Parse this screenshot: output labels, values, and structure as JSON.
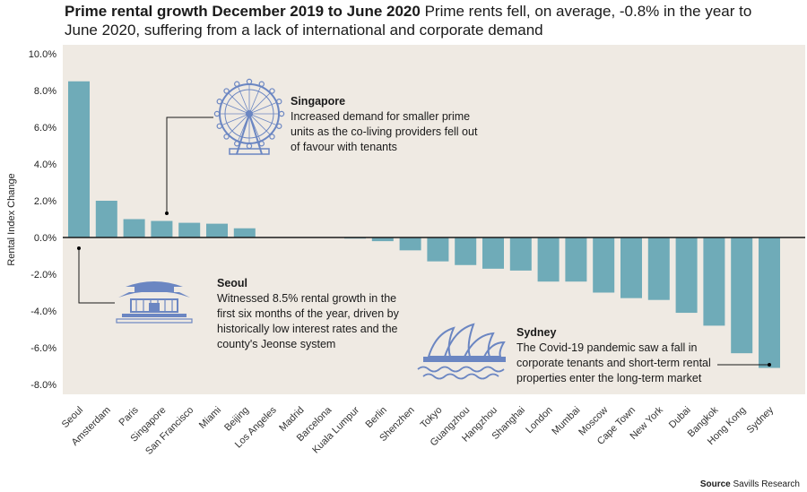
{
  "header": {
    "title_bold": "Prime rental growth December 2019 to June 2020",
    "title_rest": "Prime rents fell, on average, -0.8% in the year to June 2020, suffering from a lack of international and corporate demand"
  },
  "chart_data": {
    "type": "bar",
    "ylabel": "Rental Index Change",
    "ylim": [
      -8.5,
      10.0
    ],
    "yticks": [
      "10.0%",
      "8.0%",
      "6.0%",
      "4.0%",
      "2.0%",
      "0.0%",
      "-2.0%",
      "-4.0%",
      "-6.0%",
      "-8.0%"
    ],
    "ytick_values": [
      10,
      8,
      6,
      4,
      2,
      0,
      -2,
      -4,
      -6,
      -8
    ],
    "categories": [
      "Seoul",
      "Amsterdam",
      "Paris",
      "Singapore",
      "San Francisco",
      "Miami",
      "Beijing",
      "Los Angeles",
      "Madrid",
      "Barcelona",
      "Kuala Lumpur",
      "Berlin",
      "Shenzhen",
      "Tokyo",
      "Guangzhou",
      "Hangzhou",
      "Shanghai",
      "London",
      "Mumbai",
      "Moscow",
      "Cape Town",
      "New York",
      "Dubai",
      "Bangkok",
      "Hong Kong",
      "Sydney"
    ],
    "values": [
      8.5,
      2.0,
      1.0,
      0.9,
      0.8,
      0.75,
      0.5,
      0.0,
      0.0,
      0.0,
      -0.05,
      -0.2,
      -0.7,
      -1.3,
      -1.5,
      -1.7,
      -1.8,
      -2.4,
      -2.4,
      -3.0,
      -3.3,
      -3.4,
      -4.1,
      -4.8,
      -6.3,
      -7.1
    ],
    "bar_color": "#6fabb8",
    "grid": false,
    "legend": "none"
  },
  "annotations": {
    "singapore": {
      "heading": "Singapore",
      "lines": [
        "Increased demand for smaller prime",
        "units as the co-living providers fell out",
        "of favour with tenants"
      ],
      "icon": "ferris-wheel-icon"
    },
    "seoul": {
      "heading": "Seoul",
      "lines": [
        "Witnessed 8.5% rental growth in the",
        "first six months of the year, driven by",
        "historically low interest rates and the",
        "county's Jeonse system"
      ],
      "icon": "pagoda-icon"
    },
    "sydney": {
      "heading": "Sydney",
      "lines": [
        "The Covid-19 pandemic saw a fall in",
        "corporate tenants and short-term rental",
        "properties enter the long-term market"
      ],
      "icon": "opera-house-icon"
    }
  },
  "footer": {
    "source_label": "Source",
    "source_text": "Savills Research"
  },
  "colors": {
    "icon": "#6b86c2",
    "axis": "#1a1a1a",
    "plot_bg": "#efeae3"
  }
}
